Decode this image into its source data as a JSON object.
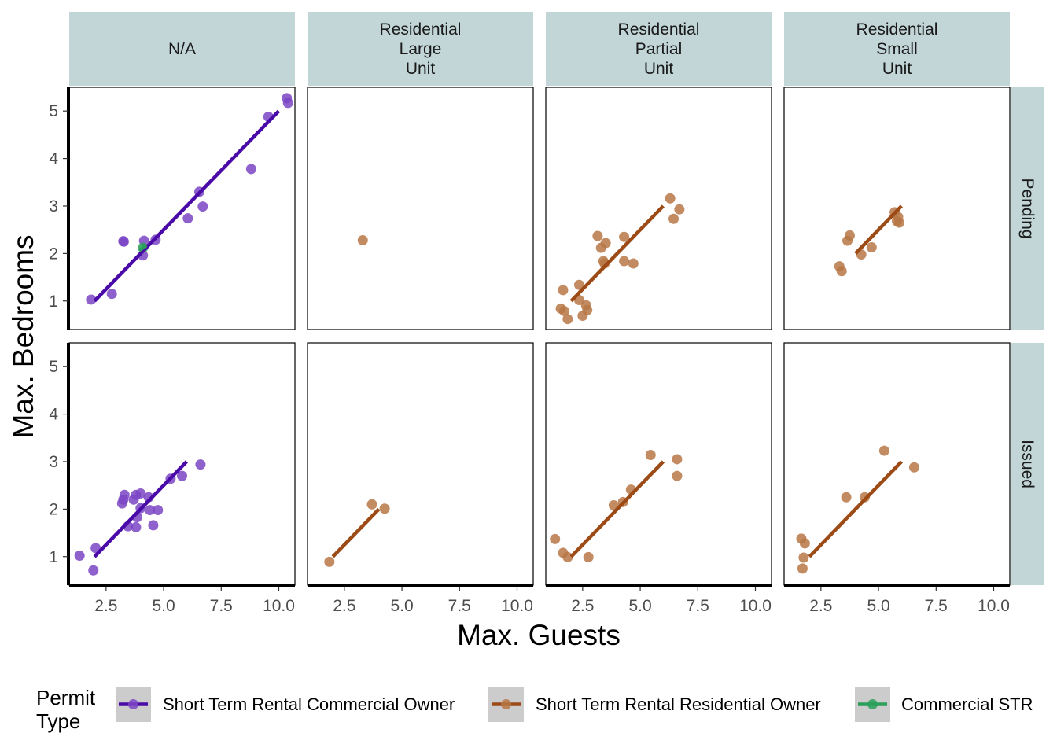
{
  "colors": {
    "strip_fill": "#c2d6d8",
    "commercial_owner": "#4a0aa8",
    "commercial_owner_point": "#7b45c4",
    "residential_owner": "#9c4a16",
    "residential_owner_point": "#b77747",
    "commercial_str": "#2aa05a",
    "legend_key_bg": "#cccccc"
  },
  "chart_data": {
    "type": "scatter",
    "xlabel": "Max. Guests",
    "ylabel": "Max. Bedrooms",
    "xlim": [
      0.9,
      10.7
    ],
    "ylim": [
      0.4,
      5.5
    ],
    "xticks": [
      2.5,
      5.0,
      7.5,
      10.0
    ],
    "xtick_labels": [
      "2.5",
      "5.0",
      "7.5",
      "10.0"
    ],
    "yticks": [
      1,
      2,
      3,
      4,
      5
    ],
    "ytick_labels": [
      "1",
      "2",
      "3",
      "4",
      "5"
    ],
    "columns": [
      {
        "key": "na",
        "label": [
          "N/A"
        ]
      },
      {
        "key": "rlu",
        "label": [
          "Residential",
          "Large",
          "Unit"
        ]
      },
      {
        "key": "rpu",
        "label": [
          "Residential",
          "Partial",
          "Unit"
        ]
      },
      {
        "key": "rsu",
        "label": [
          "Residential",
          "Small",
          "Unit"
        ]
      }
    ],
    "rows": [
      {
        "key": "pending",
        "label": "Pending"
      },
      {
        "key": "issued",
        "label": "Issued"
      }
    ],
    "legend": {
      "title": [
        "Permit",
        "Type"
      ],
      "position": "bottom",
      "entries": [
        {
          "label": "Short Term Rental Commercial Owner",
          "color_key": "commercial_owner"
        },
        {
          "label": "Short Term Rental Residential Owner",
          "color_key": "residential_owner"
        },
        {
          "label": "Commercial STR",
          "color_key": "commercial_str"
        }
      ]
    },
    "panels": [
      {
        "row": "pending",
        "col": "na",
        "series": [
          {
            "name": "Short Term Rental Commercial Owner",
            "points": [
              [
                1.85,
                1.03
              ],
              [
                2.75,
                1.15
              ],
              [
                3.25,
                2.26
              ],
              [
                3.27,
                2.25
              ],
              [
                4.1,
                1.96
              ],
              [
                4.15,
                2.27
              ],
              [
                4.65,
                2.29
              ],
              [
                6.05,
                2.74
              ],
              [
                6.55,
                3.3
              ],
              [
                6.7,
                2.99
              ],
              [
                8.8,
                3.78
              ],
              [
                9.55,
                4.88
              ],
              [
                10.35,
                5.27
              ],
              [
                10.4,
                5.17
              ]
            ],
            "line": [
              [
                2.0,
                1.0
              ],
              [
                10.0,
                5.0
              ]
            ]
          },
          {
            "name": "Commercial STR",
            "points": [
              [
                4.1,
                2.12
              ]
            ],
            "line": [
              [
                3.95,
                2.07
              ],
              [
                4.25,
                2.17
              ]
            ]
          }
        ]
      },
      {
        "row": "pending",
        "col": "rlu",
        "series": [
          {
            "name": "Short Term Rental Residential Owner",
            "points": [
              [
                3.3,
                2.28
              ]
            ],
            "line": null
          }
        ]
      },
      {
        "row": "pending",
        "col": "rpu",
        "series": [
          {
            "name": "Short Term Rental Residential Owner",
            "points": [
              [
                1.55,
                0.84
              ],
              [
                1.65,
                1.23
              ],
              [
                1.7,
                0.79
              ],
              [
                1.85,
                0.62
              ],
              [
                2.35,
                1.34
              ],
              [
                2.35,
                1.02
              ],
              [
                2.5,
                0.69
              ],
              [
                2.65,
                0.91
              ],
              [
                2.7,
                0.81
              ],
              [
                3.15,
                2.37
              ],
              [
                3.3,
                2.12
              ],
              [
                3.4,
                1.84
              ],
              [
                3.45,
                1.79
              ],
              [
                3.5,
                2.22
              ],
              [
                4.3,
                2.35
              ],
              [
                4.3,
                1.84
              ],
              [
                4.7,
                1.79
              ],
              [
                6.3,
                3.16
              ],
              [
                6.45,
                2.73
              ],
              [
                6.7,
                2.93
              ]
            ],
            "line": [
              [
                2.0,
                1.0
              ],
              [
                6.0,
                3.0
              ]
            ]
          }
        ]
      },
      {
        "row": "pending",
        "col": "rsu",
        "series": [
          {
            "name": "Short Term Rental Residential Owner",
            "points": [
              [
                3.3,
                1.73
              ],
              [
                3.4,
                1.63
              ],
              [
                3.65,
                2.27
              ],
              [
                3.75,
                2.38
              ],
              [
                4.25,
                1.98
              ],
              [
                4.7,
                2.13
              ],
              [
                5.7,
                2.87
              ],
              [
                5.8,
                2.68
              ],
              [
                5.9,
                2.65
              ],
              [
                5.85,
                2.77
              ]
            ],
            "line": [
              [
                4.0,
                2.0
              ],
              [
                6.0,
                3.0
              ]
            ]
          }
        ]
      },
      {
        "row": "issued",
        "col": "na",
        "series": [
          {
            "name": "Short Term Rental Commercial Owner",
            "points": [
              [
                1.35,
                1.02
              ],
              [
                1.95,
                0.71
              ],
              [
                2.05,
                1.18
              ],
              [
                3.2,
                2.12
              ],
              [
                3.25,
                2.2
              ],
              [
                3.3,
                2.3
              ],
              [
                3.45,
                1.64
              ],
              [
                3.7,
                2.2
              ],
              [
                3.8,
                1.62
              ],
              [
                3.8,
                2.3
              ],
              [
                3.85,
                1.83
              ],
              [
                4.0,
                2.33
              ],
              [
                4.0,
                2.02
              ],
              [
                4.35,
                2.25
              ],
              [
                4.4,
                1.98
              ],
              [
                4.55,
                1.66
              ],
              [
                4.75,
                1.98
              ],
              [
                5.3,
                2.64
              ],
              [
                5.8,
                2.7
              ],
              [
                6.6,
                2.94
              ]
            ],
            "line": [
              [
                2.0,
                1.0
              ],
              [
                6.0,
                3.0
              ]
            ]
          }
        ]
      },
      {
        "row": "issued",
        "col": "rlu",
        "series": [
          {
            "name": "Short Term Rental Residential Owner",
            "points": [
              [
                1.85,
                0.89
              ],
              [
                3.7,
                2.1
              ],
              [
                4.25,
                2.01
              ]
            ],
            "line": [
              [
                2.0,
                1.0
              ],
              [
                4.0,
                2.0
              ]
            ]
          }
        ]
      },
      {
        "row": "issued",
        "col": "rpu",
        "series": [
          {
            "name": "Short Term Rental Residential Owner",
            "points": [
              [
                1.3,
                1.37
              ],
              [
                1.65,
                1.08
              ],
              [
                1.85,
                0.99
              ],
              [
                2.75,
                0.99
              ],
              [
                3.85,
                2.08
              ],
              [
                4.25,
                2.15
              ],
              [
                4.6,
                2.41
              ],
              [
                5.45,
                3.14
              ],
              [
                6.6,
                3.05
              ],
              [
                6.6,
                2.7
              ]
            ],
            "line": [
              [
                2.0,
                1.0
              ],
              [
                6.0,
                3.0
              ]
            ]
          }
        ]
      },
      {
        "row": "issued",
        "col": "rsu",
        "series": [
          {
            "name": "Short Term Rental Residential Owner",
            "points": [
              [
                1.65,
                1.38
              ],
              [
                1.8,
                1.28
              ],
              [
                1.75,
                0.98
              ],
              [
                1.7,
                0.75
              ],
              [
                3.6,
                2.25
              ],
              [
                4.4,
                2.25
              ],
              [
                5.25,
                3.23
              ],
              [
                6.55,
                2.88
              ]
            ],
            "line": [
              [
                2.0,
                1.0
              ],
              [
                6.0,
                3.0
              ]
            ]
          }
        ]
      }
    ]
  }
}
